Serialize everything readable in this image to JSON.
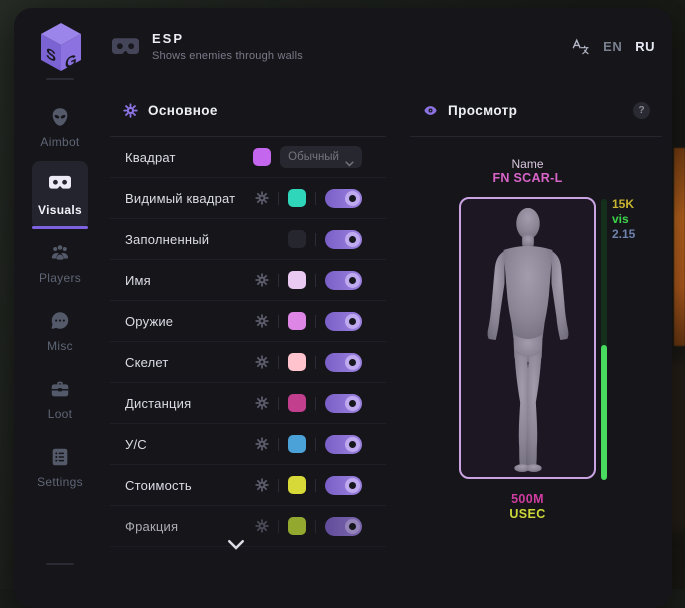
{
  "header": {
    "logo_icon": "sg-cube-logo",
    "icon": "vr-goggles-icon",
    "title": "ESP",
    "subtitle": "Shows enemies through walls",
    "translate_icon": "translate-icon",
    "languages": [
      {
        "label": "EN",
        "active": false
      },
      {
        "label": "RU",
        "active": true
      }
    ]
  },
  "sidebar": {
    "items": [
      {
        "label": "Aimbot",
        "icon": "alien-icon",
        "active": false
      },
      {
        "label": "Visuals",
        "icon": "vr-goggles-icon",
        "active": true
      },
      {
        "label": "Players",
        "icon": "people-icon",
        "active": false
      },
      {
        "label": "Misc",
        "icon": "chat-bubble-icon",
        "active": false
      },
      {
        "label": "Loot",
        "icon": "briefcase-icon",
        "active": false
      },
      {
        "label": "Settings",
        "icon": "list-icon",
        "active": false
      }
    ]
  },
  "main_panel": {
    "icon": "gear-icon",
    "title": "Основное",
    "rows": [
      {
        "label": "Квадрат",
        "has_gear": false,
        "swatch": "#c566ee",
        "control": "dropdown",
        "dropdown_value": "Обычный"
      },
      {
        "label": "Видимый квадрат",
        "has_gear": true,
        "swatch": "#2fd6ba",
        "control": "toggle",
        "enabled": true
      },
      {
        "label": "Заполненный",
        "has_gear": false,
        "swatch": "#26262e",
        "control": "toggle",
        "enabled": true
      },
      {
        "label": "Имя",
        "has_gear": true,
        "swatch": "#e9c9f2",
        "control": "toggle",
        "enabled": true
      },
      {
        "label": "Оружие",
        "has_gear": true,
        "swatch": "#dd86e6",
        "control": "toggle",
        "enabled": true
      },
      {
        "label": "Скелет",
        "has_gear": true,
        "swatch": "#ffc3cd",
        "control": "toggle",
        "enabled": true
      },
      {
        "label": "Дистанция",
        "has_gear": true,
        "swatch": "#c23f8d",
        "control": "toggle",
        "enabled": true
      },
      {
        "label": "У/С",
        "has_gear": true,
        "swatch": "#4ba2d9",
        "control": "toggle",
        "enabled": true
      },
      {
        "label": "Стоимость",
        "has_gear": true,
        "swatch": "#d6d937",
        "control": "toggle",
        "enabled": true
      },
      {
        "label": "Фракция",
        "has_gear": true,
        "swatch": "#bdd937",
        "control": "toggle",
        "enabled": true,
        "faded": true
      }
    ],
    "scroll_more_indicator": "chevron-down-icon"
  },
  "preview_panel": {
    "icon": "eye-icon",
    "title": "Просмотр",
    "help_label": "?",
    "target_name_label": "Name",
    "target_name": "FN SCAR-L",
    "stats": [
      {
        "text": "15K",
        "color": "#c8b531"
      },
      {
        "text": "vis",
        "color": "#3fd44a"
      },
      {
        "text": "2.15",
        "color": "#6e83ad"
      }
    ],
    "health_percent": 48,
    "value": "500M",
    "faction": "USEC"
  },
  "colors": {
    "accent": "#8b72e0",
    "menu_bg": "#15151a",
    "toggle_on": "#8a6fd4",
    "health_fill": "#49da60",
    "health_track": "#14301d",
    "target_name": "#d964c8",
    "value": "#cf3da0",
    "faction": "#ccd838",
    "preview_border": "#c9a3e2",
    "background_orange_strip": "#b85f1e"
  }
}
